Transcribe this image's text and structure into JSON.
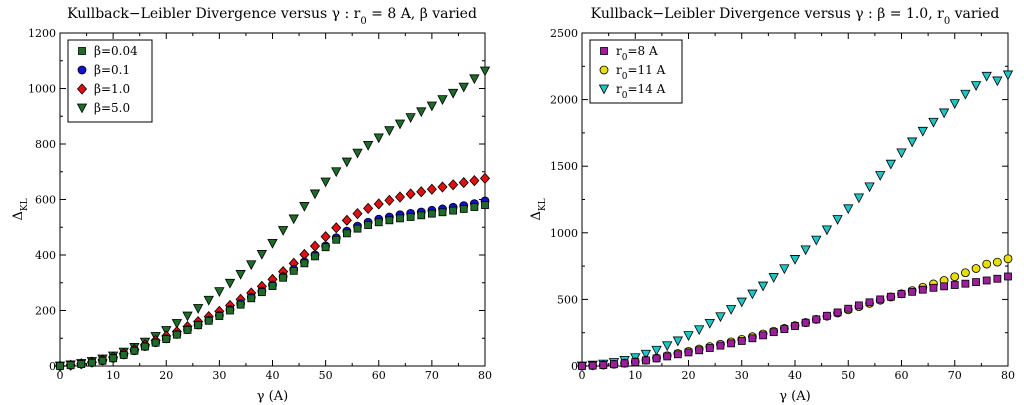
{
  "chart_data": [
    {
      "id": "left",
      "type": "scatter",
      "title": "Kullback−Leibler Divergence versus γ : r₀ = 8 A, β varied",
      "title_parts": {
        "pre": "Kullback−Leibler Divergence versus γ : r",
        "sub": "0",
        "post": " = 8 A, β varied"
      },
      "xlabel": "γ (A)",
      "ylabel": "Δ",
      "ylabel_sub": "KL",
      "xlim": [
        0,
        80
      ],
      "ylim": [
        0,
        1200
      ],
      "xticks": [
        0,
        10,
        20,
        30,
        40,
        50,
        60,
        70,
        80
      ],
      "yticks": [
        0,
        200,
        400,
        600,
        800,
        1000,
        1200
      ],
      "legend_position": "top-left",
      "x": [
        0,
        2,
        4,
        6,
        8,
        10,
        12,
        14,
        16,
        18,
        20,
        22,
        24,
        26,
        28,
        30,
        32,
        34,
        36,
        38,
        40,
        42,
        44,
        46,
        48,
        50,
        52,
        54,
        56,
        58,
        60,
        62,
        64,
        66,
        68,
        70,
        72,
        74,
        76,
        78,
        80
      ],
      "series": [
        {
          "name": "β=0.04",
          "label_main": "β=0.04",
          "marker": "square",
          "color": "#1e6b2a",
          "values": [
            0,
            3,
            7,
            12,
            19,
            28,
            40,
            55,
            70,
            84,
            97,
            113,
            130,
            147,
            163,
            180,
            200,
            221,
            244,
            266,
            288,
            318,
            343,
            370,
            395,
            428,
            455,
            478,
            495,
            508,
            518,
            525,
            532,
            537,
            543,
            549,
            554,
            560,
            566,
            573,
            580
          ]
        },
        {
          "name": "β=0.1",
          "label_main": "β=0.1",
          "marker": "circle",
          "color": "#1010d0",
          "values": [
            0,
            3,
            7,
            12,
            19,
            28,
            40,
            55,
            70,
            84,
            98,
            114,
            131,
            148,
            165,
            183,
            203,
            225,
            248,
            270,
            292,
            322,
            348,
            375,
            400,
            433,
            462,
            486,
            504,
            518,
            529,
            537,
            545,
            550,
            555,
            561,
            566,
            572,
            578,
            585,
            595
          ]
        },
        {
          "name": "β=1.0",
          "label_main": "β=1.0",
          "marker": "diamond",
          "color": "#e01010",
          "values": [
            0,
            3,
            8,
            14,
            22,
            32,
            45,
            60,
            76,
            92,
            108,
            124,
            142,
            160,
            178,
            197,
            218,
            240,
            263,
            287,
            312,
            340,
            370,
            402,
            432,
            466,
            498,
            525,
            549,
            568,
            584,
            597,
            609,
            620,
            628,
            637,
            645,
            653,
            661,
            668,
            676
          ]
        },
        {
          "name": "β=5.0",
          "label_main": "β=5.0",
          "marker": "triangle-down",
          "color": "#1e6b2a",
          "values": [
            0,
            4,
            9,
            16,
            25,
            36,
            50,
            67,
            86,
            106,
            128,
            153,
            180,
            207,
            237,
            268,
            298,
            330,
            365,
            402,
            442,
            488,
            530,
            575,
            620,
            663,
            700,
            735,
            767,
            795,
            822,
            848,
            872,
            895,
            916,
            937,
            960,
            983,
            1005,
            1035,
            1063
          ]
        }
      ]
    },
    {
      "id": "right",
      "type": "scatter",
      "title": "Kullback−Leibler Divergence versus γ : β = 1.0, r₀ varied",
      "title_parts": {
        "pre": "Kullback−Leibler Divergence versus γ : β = 1.0, r",
        "sub": "0",
        "post": " varied"
      },
      "xlabel": "γ (A)",
      "ylabel": "Δ",
      "ylabel_sub": "KL",
      "xlim": [
        0,
        80
      ],
      "ylim": [
        0,
        2500
      ],
      "xticks": [
        0,
        10,
        20,
        30,
        40,
        50,
        60,
        70,
        80
      ],
      "yticks": [
        0,
        500,
        1000,
        1500,
        2000,
        2500
      ],
      "legend_position": "top-left",
      "x": [
        0,
        2,
        4,
        6,
        8,
        10,
        12,
        14,
        16,
        18,
        20,
        22,
        24,
        26,
        28,
        30,
        32,
        34,
        36,
        38,
        40,
        42,
        44,
        46,
        48,
        50,
        52,
        54,
        56,
        58,
        60,
        62,
        64,
        66,
        68,
        70,
        72,
        74,
        76,
        78,
        80
      ],
      "series": [
        {
          "name": "r0=8 A",
          "label_main": "r",
          "label_sub": "0",
          "label_post": "=8 A",
          "marker": "square",
          "color": "#9b1f9b",
          "values": [
            0,
            3,
            7,
            13,
            20,
            29,
            42,
            57,
            72,
            88,
            102,
            118,
            135,
            153,
            170,
            188,
            208,
            230,
            254,
            277,
            300,
            325,
            350,
            377,
            402,
            430,
            455,
            478,
            500,
            520,
            540,
            557,
            573,
            587,
            598,
            608,
            618,
            630,
            642,
            655,
            672
          ]
        },
        {
          "name": "r0=11 A",
          "label_main": "r",
          "label_sub": "0",
          "label_post": "=11 A",
          "marker": "circle",
          "color": "#e6df00",
          "values": [
            0,
            3,
            7,
            13,
            21,
            31,
            44,
            60,
            77,
            94,
            110,
            127,
            145,
            163,
            181,
            200,
            220,
            240,
            261,
            282,
            303,
            326,
            350,
            374,
            398,
            422,
            446,
            470,
            494,
            518,
            542,
            566,
            591,
            616,
            642,
            670,
            700,
            732,
            765,
            780,
            805
          ]
        },
        {
          "name": "r0=14 A",
          "label_main": "r",
          "label_sub": "0",
          "label_post": "=14 A",
          "marker": "triangle-down",
          "color": "#1fc4c4",
          "values": [
            0,
            6,
            14,
            26,
            42,
            62,
            88,
            118,
            152,
            188,
            228,
            272,
            320,
            370,
            424,
            480,
            540,
            600,
            664,
            730,
            800,
            872,
            945,
            1022,
            1100,
            1180,
            1262,
            1345,
            1430,
            1515,
            1600,
            1682,
            1762,
            1830,
            1900,
            1970,
            2040,
            2105,
            2175,
            2140,
            2185
          ]
        }
      ]
    }
  ]
}
